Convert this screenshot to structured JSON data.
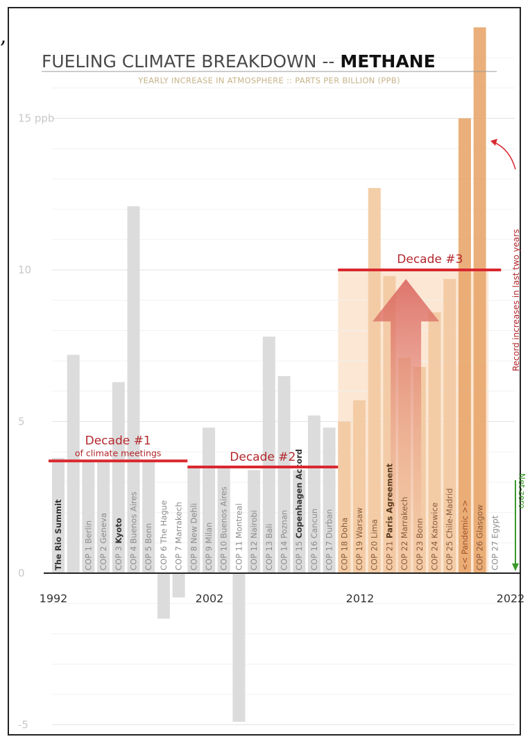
{
  "corner_mark": ",",
  "chart_data": {
    "type": "bar",
    "title": "FUELING CLIMATE BREAKDOWN -- ",
    "title_bold": "METHANE",
    "subtitle": "YEARLY INCREASE IN ATMOSPHERE :: PARTS PER BILLION (PPB)",
    "ylim": [
      -5,
      18
    ],
    "y_ticks": [
      {
        "value": 15,
        "label": "15 ppb"
      },
      {
        "value": 10,
        "label": "10"
      },
      {
        "value": 5,
        "label": "5"
      },
      {
        "value": 0,
        "label": "0"
      },
      {
        "value": -5,
        "label": "-5"
      }
    ],
    "x_ticks": [
      {
        "year": 1992,
        "label": "1992"
      },
      {
        "year": 2002,
        "label": "2002"
      },
      {
        "year": 2012,
        "label": "2012"
      },
      {
        "year": 2022,
        "label": "2022"
      }
    ],
    "grid": true,
    "bars": [
      {
        "year": 1992,
        "value": 3.8,
        "label": "The Rio Summit",
        "bold": true
      },
      {
        "year": 1993,
        "value": 7.2,
        "label": ""
      },
      {
        "year": 1994,
        "value": 3.7,
        "label": "COP 1 Berlin"
      },
      {
        "year": 1995,
        "value": 3.7,
        "label": "COP 2 Geneva"
      },
      {
        "year": 1996,
        "value": 6.3,
        "label": "COP 3 Kyoto",
        "bold_part": "Kyoto"
      },
      {
        "year": 1997,
        "value": 12.1,
        "label": "COP 4 Buenos Aires"
      },
      {
        "year": 1998,
        "value": 3.7,
        "label": "COP 5 Bonn"
      },
      {
        "year": 1999,
        "value": -1.5,
        "label": "COP 6 The Hague"
      },
      {
        "year": 2000,
        "value": -0.8,
        "label": "COP 7 Marrakech"
      },
      {
        "year": 2001,
        "value": 3.5,
        "label": "COP 8 New Dehli"
      },
      {
        "year": 2002,
        "value": 4.8,
        "label": "COP 9 Milan"
      },
      {
        "year": 2003,
        "value": 3.5,
        "label": "COP 10 Buenos Aires"
      },
      {
        "year": 2004,
        "value": -4.9,
        "label": "COP 11 Montreal"
      },
      {
        "year": 2005,
        "value": 3.4,
        "label": "COP 12 Nairobi"
      },
      {
        "year": 2006,
        "value": 7.8,
        "label": "COP 13 Bali"
      },
      {
        "year": 2007,
        "value": 6.5,
        "label": "COP 14 Poznan"
      },
      {
        "year": 2008,
        "value": 3.4,
        "label": "COP 15 Copenhagen Accord",
        "bold_part": "Copenhagen Accord"
      },
      {
        "year": 2009,
        "value": 5.2,
        "label": "COP 16 Cancun"
      },
      {
        "year": 2010,
        "value": 4.8,
        "label": "COP 17 Durban"
      },
      {
        "year": 2011,
        "value": 5.0,
        "label": "COP 18 Doha"
      },
      {
        "year": 2012,
        "value": 5.7,
        "label": "COP 19 Warsaw"
      },
      {
        "year": 2013,
        "value": 12.7,
        "label": "COP 20 Lima"
      },
      {
        "year": 2014,
        "value": 9.8,
        "label": "COP 21 Paris Agreement",
        "bold_part": "Paris Agreement"
      },
      {
        "year": 2015,
        "value": 7.1,
        "label": "COP 22 Marrakech"
      },
      {
        "year": 2016,
        "value": 6.8,
        "label": "COP 23 Bonn"
      },
      {
        "year": 2017,
        "value": 8.6,
        "label": "COP 24 Katowice"
      },
      {
        "year": 2018,
        "value": 9.7,
        "label": "COP 25 Chile-Madrid"
      },
      {
        "year": 2019,
        "value": 15.0,
        "label": "<< Pandemic >>"
      },
      {
        "year": 2020,
        "value": 18.0,
        "label": "COP 26 Glasgow"
      },
      {
        "year": 2021,
        "value": 0,
        "label": "COP 27 Egypt"
      }
    ],
    "decades": [
      {
        "label": "Decade #1",
        "sublabel": "of climate meetings",
        "from_year": 1992,
        "to_year": 2001,
        "value": 3.7
      },
      {
        "label": "Decade #2",
        "sublabel": "",
        "from_year": 2001,
        "to_year": 2011,
        "value": 3.5
      },
      {
        "label": "Decade #3",
        "sublabel": "",
        "from_year": 2011,
        "to_year": 2021,
        "value": 10.0
      }
    ],
    "annotations": {
      "record_note": "Record increases in last two years",
      "net_zero": "Net-zero"
    },
    "colors": {
      "grey_bar": "#dcdcdc",
      "orange_bar": "#f2c9a0",
      "orange_dark": "#e8a66c",
      "decade_line": "#d9282f",
      "text_red": "#b3262b",
      "net_zero_green": "#3a9a2a"
    }
  }
}
